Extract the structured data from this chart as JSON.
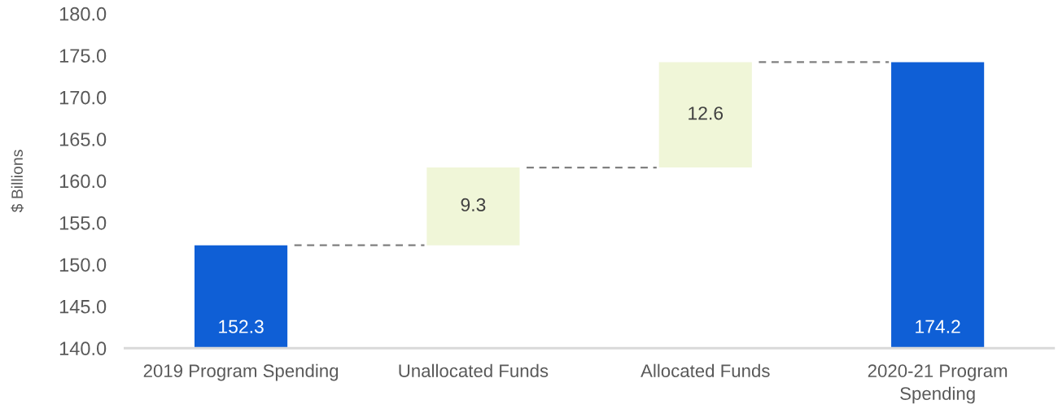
{
  "chart_data": {
    "type": "bar",
    "ylabel": "$ Billions",
    "categories": [
      "2019 Program Spending",
      "Unallocated Funds",
      "Allocated Funds",
      "2020-21 Program Spending"
    ],
    "values": [
      152.3,
      9.3,
      12.6,
      174.2
    ],
    "base": [
      null,
      152.3,
      161.6,
      null
    ],
    "colors": [
      "#0f5fd6",
      "#f0f6d8",
      "#f0f6d8",
      "#0f5fd6"
    ],
    "ylim": [
      140,
      180
    ],
    "yticks": [
      {
        "value": 140,
        "label": "140.0"
      },
      {
        "value": 145,
        "label": "145.0"
      },
      {
        "value": 150,
        "label": "150.0"
      },
      {
        "value": 155,
        "label": "155.0"
      },
      {
        "value": 160,
        "label": "160.0"
      },
      {
        "value": 165,
        "label": "165.0"
      },
      {
        "value": 170,
        "label": "170.0"
      },
      {
        "value": 175,
        "label": "175.0"
      },
      {
        "value": 180,
        "label": "180.0"
      }
    ],
    "data_labels": true,
    "grid": false,
    "legend": false
  }
}
